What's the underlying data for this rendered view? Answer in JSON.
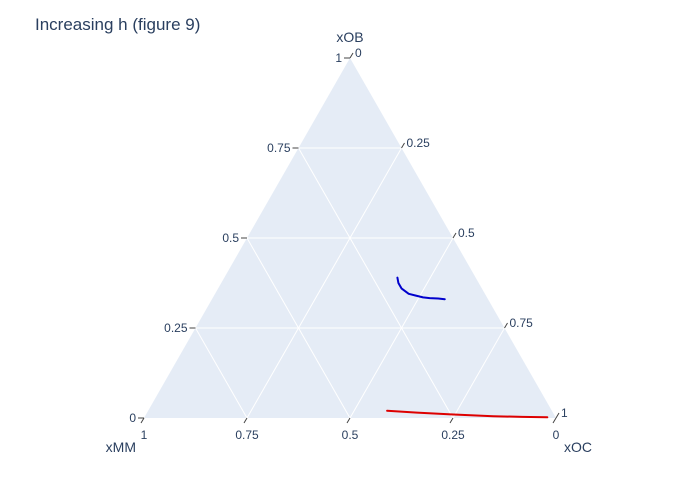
{
  "chart_data": {
    "type": "ternary-line",
    "title": "Increasing h (figure 9)",
    "axes": {
      "a": {
        "title": "xOB",
        "ticks": [
          "0",
          "0.25",
          "0.5",
          "0.75",
          "1"
        ]
      },
      "b": {
        "title": "xMM",
        "ticks": [
          "0",
          "0.25",
          "0.5",
          "0.75",
          "1"
        ]
      },
      "c": {
        "title": "xOC",
        "ticks": [
          "0",
          "0.25",
          "0.5",
          "0.75",
          "1"
        ]
      }
    },
    "sum": 1,
    "grid": true,
    "colors": {
      "background": "#e5ecf6",
      "grid": "#ffffff",
      "text": "#2a3f5f",
      "series1": "#0000cc",
      "series2": "#dd0000"
    },
    "series": [
      {
        "color": "#0000cc",
        "points": [
          {
            "a": 0.39,
            "b": 0.19,
            "c": 0.42
          },
          {
            "a": 0.375,
            "b": 0.195,
            "c": 0.43
          },
          {
            "a": 0.36,
            "b": 0.195,
            "c": 0.445
          },
          {
            "a": 0.345,
            "b": 0.185,
            "c": 0.47
          },
          {
            "a": 0.34,
            "b": 0.17,
            "c": 0.49
          },
          {
            "a": 0.335,
            "b": 0.155,
            "c": 0.51
          },
          {
            "a": 0.333,
            "b": 0.14,
            "c": 0.527
          },
          {
            "a": 0.332,
            "b": 0.12,
            "c": 0.548
          },
          {
            "a": 0.33,
            "b": 0.105,
            "c": 0.565
          }
        ]
      },
      {
        "color": "#dd0000",
        "points": [
          {
            "a": 0.02,
            "b": 0.4,
            "c": 0.58
          },
          {
            "a": 0.015,
            "b": 0.33,
            "c": 0.655
          },
          {
            "a": 0.01,
            "b": 0.25,
            "c": 0.74
          },
          {
            "a": 0.005,
            "b": 0.15,
            "c": 0.845
          },
          {
            "a": 0.003,
            "b": 0.08,
            "c": 0.917
          },
          {
            "a": 0.002,
            "b": 0.02,
            "c": 0.978
          }
        ]
      }
    ]
  }
}
